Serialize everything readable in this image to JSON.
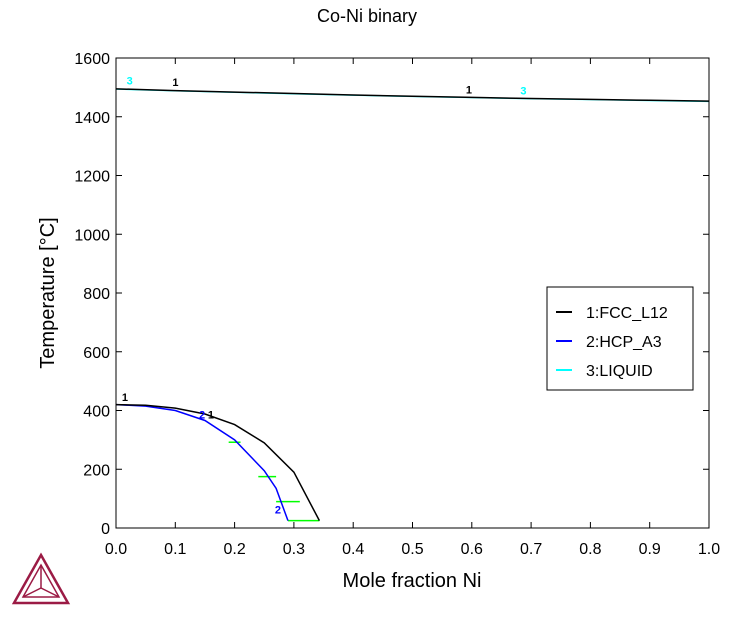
{
  "chart_data": {
    "type": "line",
    "title": "Co-Ni binary",
    "xlabel": "Mole fraction Ni",
    "ylabel": "Temperature [°C]",
    "xlim": [
      0,
      1.0
    ],
    "ylim": [
      0,
      1600
    ],
    "xticks": [
      "0.0",
      "0.1",
      "0.2",
      "0.3",
      "0.4",
      "0.5",
      "0.6",
      "0.7",
      "0.8",
      "0.9",
      "1.0"
    ],
    "yticks": [
      "0",
      "200",
      "400",
      "600",
      "800",
      "1000",
      "1200",
      "1400",
      "1600"
    ],
    "legend_position": "right",
    "series": [
      {
        "name": "1:FCC_L12",
        "color": "#000000",
        "segments": [
          [
            [
              0,
              1495
            ],
            [
              0.1,
              1489
            ],
            [
              0.2,
              1484
            ],
            [
              0.3,
              1479
            ],
            [
              0.4,
              1474
            ],
            [
              0.5,
              1470
            ],
            [
              0.6,
              1466
            ],
            [
              0.7,
              1462
            ],
            [
              0.8,
              1459
            ],
            [
              0.9,
              1456
            ],
            [
              1.0,
              1453
            ]
          ],
          [
            [
              0,
              420
            ],
            [
              0.05,
              418
            ],
            [
              0.1,
              408
            ],
            [
              0.15,
              388
            ],
            [
              0.2,
              352
            ],
            [
              0.25,
              290
            ],
            [
              0.3,
              190
            ],
            [
              0.343,
              25
            ]
          ]
        ]
      },
      {
        "name": "2:HCP_A3",
        "color": "#0000ff",
        "segments": [
          [
            [
              0,
              420
            ],
            [
              0.05,
              415
            ],
            [
              0.1,
              400
            ],
            [
              0.15,
              366
            ],
            [
              0.2,
              300
            ],
            [
              0.25,
              195
            ],
            [
              0.27,
              135
            ],
            [
              0.29,
              25
            ]
          ]
        ]
      },
      {
        "name": "3:LIQUID",
        "color": "#00ffff",
        "segments": [
          [
            [
              0,
              1494
            ],
            [
              0.1,
              1488
            ],
            [
              0.2,
              1483
            ],
            [
              0.3,
              1478
            ],
            [
              0.4,
              1473
            ],
            [
              0.5,
              1469
            ],
            [
              0.6,
              1465
            ],
            [
              0.7,
              1461
            ],
            [
              0.8,
              1458
            ],
            [
              0.9,
              1455
            ],
            [
              1.0,
              1452
            ]
          ]
        ]
      }
    ],
    "tie_lines": {
      "color": "#00ff00",
      "lines": [
        [
          [
            0.19,
            292
          ],
          [
            0.21,
            292
          ]
        ],
        [
          [
            0.24,
            175
          ],
          [
            0.27,
            175
          ]
        ],
        [
          [
            0.27,
            90
          ],
          [
            0.31,
            90
          ]
        ],
        [
          [
            0.29,
            25
          ],
          [
            0.343,
            25
          ]
        ]
      ]
    },
    "line_labels": [
      {
        "text": "3",
        "x": 0.018,
        "y": 1510,
        "color": "#00ffff"
      },
      {
        "text": "1",
        "x": 0.095,
        "y": 1505,
        "color": "#000000"
      },
      {
        "text": "1",
        "x": 0.59,
        "y": 1480,
        "color": "#000000"
      },
      {
        "text": "3",
        "x": 0.682,
        "y": 1475,
        "color": "#00ffff"
      },
      {
        "text": "1",
        "x": 0.01,
        "y": 432,
        "color": "#000000"
      },
      {
        "text": "2",
        "x": 0.14,
        "y": 372,
        "color": "#0000ff"
      },
      {
        "text": "1",
        "x": 0.155,
        "y": 372,
        "color": "#000000"
      },
      {
        "text": "2",
        "x": 0.268,
        "y": 50,
        "color": "#0000ff"
      }
    ]
  }
}
